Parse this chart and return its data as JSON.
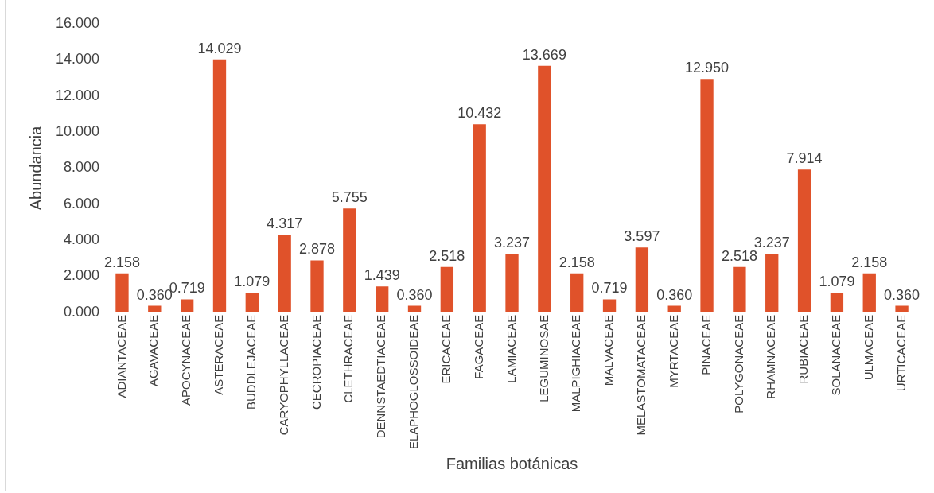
{
  "chart_data": {
    "type": "bar",
    "xlabel": "Familias botánicas",
    "ylabel": "Abundancia",
    "categories": [
      "ADIANTACEAE",
      "AGAVACEAE",
      "APOCYNACEAE",
      "ASTERACEAE",
      "BUDDLEJACEAE",
      "CARYOPHYLLACEAE",
      "CECROPIACEAE",
      "CLETHRACEAE",
      "DENNSTAEDTIACEAE",
      "ELAPHOGLOSSOIDEAE",
      "ERICACEAE",
      "FAGACEAE",
      "LAMIACEAE",
      "LEGUMINOSAE",
      "MALPIGHIACEAE",
      "MALVACEAE",
      "MELASTOMATACEAE",
      "MYRTACEAE",
      "PINACEAE",
      "POLYGONACEAE",
      "RHAMNACEAE",
      "RUBIACEAE",
      "SOLANACEAE",
      "ULMACEAE",
      "URTICACEAE"
    ],
    "values": [
      2.158,
      0.36,
      0.719,
      14.029,
      1.079,
      4.317,
      2.878,
      5.755,
      1.439,
      0.36,
      2.518,
      10.432,
      3.237,
      13.669,
      2.158,
      0.719,
      3.597,
      0.36,
      12.95,
      2.518,
      3.237,
      7.914,
      1.079,
      2.158,
      0.36
    ],
    "value_labels": [
      "2.158",
      "0.360",
      "0.719",
      "14.029",
      "1.079",
      "4.317",
      "2.878",
      "5.755",
      "1.439",
      "0.360",
      "2.518",
      "10.432",
      "3.237",
      "13.669",
      "2.158",
      "0.719",
      "3.597",
      "0.360",
      "12.950",
      "2.518",
      "3.237",
      "7.914",
      "1.079",
      "2.158",
      "0.360"
    ],
    "color": "#e0522a",
    "ylim": [
      0,
      16
    ],
    "yticks": [
      {
        "value": 0,
        "label": "0.000"
      },
      {
        "value": 2,
        "label": "2.000"
      },
      {
        "value": 4,
        "label": "4.000"
      },
      {
        "value": 6,
        "label": "6.000"
      },
      {
        "value": 8,
        "label": "8.000"
      },
      {
        "value": 10,
        "label": "10.000"
      },
      {
        "value": 12,
        "label": "12.000"
      },
      {
        "value": 14,
        "label": "14.000"
      },
      {
        "value": 16,
        "label": "16.000"
      }
    ],
    "grid": false,
    "legend": false
  }
}
